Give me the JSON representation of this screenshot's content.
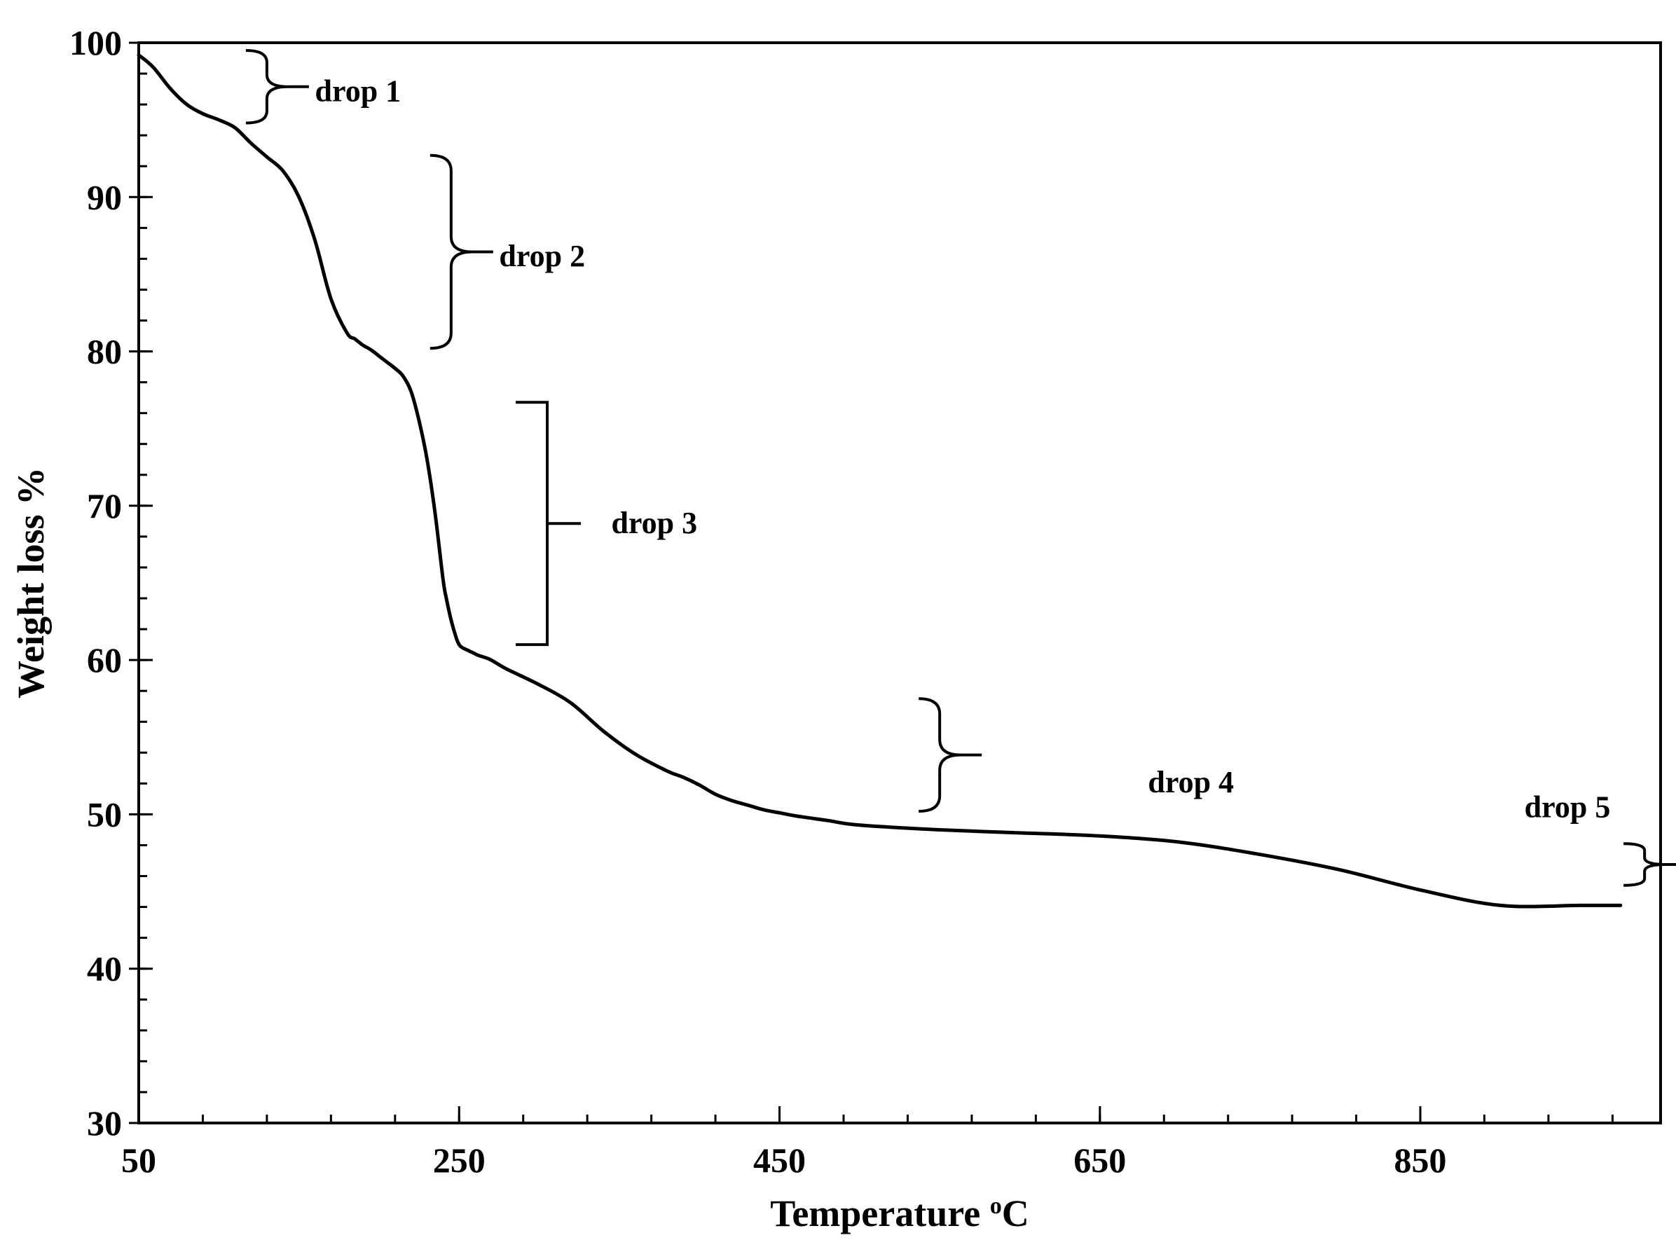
{
  "chart_data": {
    "type": "line",
    "title": "",
    "xlabel": "Temperature ",
    "xlabel_sup": "o",
    "xlabel_unit": "C",
    "ylabel": "Weight loss %",
    "xlim": [
      50,
      1000
    ],
    "ylim": [
      30,
      100
    ],
    "x_ticks": [
      50,
      250,
      450,
      650,
      850
    ],
    "x_minor_step": 40,
    "y_ticks": [
      30,
      40,
      50,
      60,
      70,
      80,
      90,
      100
    ],
    "y_minor_step": 2,
    "grid": false,
    "legend": "none",
    "series": [
      {
        "x": [
          50,
          55,
          60,
          70,
          80,
          90,
          100,
          110,
          120,
          130,
          140,
          150,
          160,
          170,
          180,
          185,
          190,
          195,
          200,
          205,
          210,
          215,
          220,
          225,
          230,
          235,
          240,
          242,
          245,
          248,
          250,
          252,
          254,
          256,
          258,
          260,
          262,
          265,
          270,
          280,
          300,
          320,
          340,
          360,
          380,
          390,
          400,
          410,
          420,
          430,
          440,
          450,
          460,
          480,
          500,
          550,
          600,
          650,
          700,
          750,
          800,
          850,
          900,
          950,
          975
        ],
        "y": [
          99.2,
          98.8,
          98.3,
          97.0,
          96.0,
          95.4,
          95.0,
          94.5,
          93.5,
          92.6,
          91.7,
          90.0,
          87.2,
          83.4,
          81.2,
          80.8,
          80.4,
          80.1,
          79.7,
          79.3,
          78.9,
          78.4,
          77.4,
          75.5,
          73.0,
          69.5,
          65.2,
          64.0,
          62.6,
          61.5,
          61.0,
          60.8,
          60.7,
          60.6,
          60.5,
          60.4,
          60.3,
          60.2,
          60.0,
          59.4,
          58.4,
          57.2,
          55.4,
          53.9,
          52.8,
          52.4,
          51.9,
          51.3,
          50.9,
          50.6,
          50.3,
          50.1,
          49.9,
          49.6,
          49.3,
          49.0,
          48.8,
          48.6,
          48.2,
          47.4,
          46.4,
          45.1,
          44.1,
          44.1,
          44.1
        ]
      }
    ],
    "annotations": [
      {
        "label": "drop 1",
        "bracket": "curly",
        "x": 130,
        "y_top": 99.5,
        "y_bottom": 94.8,
        "label_x": 160,
        "label_y": 96.9
      },
      {
        "label": "drop 2",
        "bracket": "curly",
        "x": 245,
        "y_top": 92.7,
        "y_bottom": 80.2,
        "label_x": 275,
        "label_y": 86.2
      },
      {
        "label": "drop 3",
        "bracket": "square",
        "x": 305,
        "y_top": 76.7,
        "y_bottom": 61.0,
        "label_x": 345,
        "label_y": 68.9
      },
      {
        "label": "drop 4",
        "bracket": "curly",
        "x": 550,
        "y_top": 57.5,
        "y_bottom": 50.2,
        "label_x": 680,
        "label_y": 52.1
      },
      {
        "label": "drop 5",
        "bracket": "curly",
        "x": 990,
        "y_top": 48.1,
        "y_bottom": 45.4,
        "label_x": 915,
        "label_y": 50.5
      }
    ]
  }
}
